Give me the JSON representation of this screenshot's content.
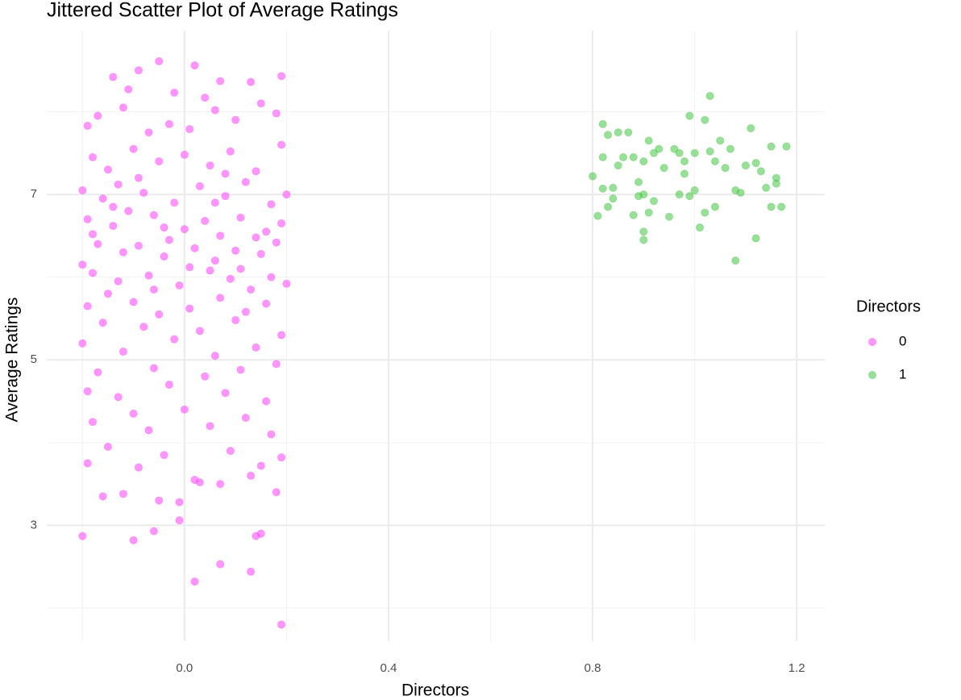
{
  "chart_data": {
    "type": "scatter",
    "title": "Jittered Scatter Plot of Average Ratings",
    "x_label": "Directors",
    "y_label": "Average Ratings",
    "legend_title": "Directors",
    "legend_position": "right",
    "grid": true,
    "xlim": [
      -0.27,
      1.255
    ],
    "ylim": [
      1.6,
      8.98
    ],
    "xticks": [
      {
        "value": 0,
        "label": "0.0"
      },
      0.4,
      0.8,
      1.2
    ],
    "yticks": [
      3,
      5,
      7
    ],
    "x_minor_ticks": [
      -0.2,
      0.2,
      0.6,
      1.0
    ],
    "y_minor_ticks": [
      2,
      4,
      6,
      8
    ],
    "series": [
      {
        "name": "0",
        "color": "#ff40ff",
        "x": [
          -0.2,
          -0.1,
          -0.06,
          -0.01,
          0.02,
          0.07,
          0.13,
          0.14,
          0.15,
          0.19,
          -0.05,
          0.02,
          0.19,
          -0.09,
          -0.14,
          0.07,
          0.13,
          -0.11,
          0.04,
          -0.02,
          -0.19,
          -0.17,
          -0.12,
          0.1,
          0.18,
          -0.03,
          0.06,
          0.15,
          -0.07,
          0.01,
          -0.18,
          -0.15,
          -0.1,
          -0.05,
          0.0,
          0.05,
          0.09,
          0.14,
          0.19,
          -0.13,
          -0.2,
          -0.16,
          -0.08,
          -0.02,
          0.03,
          0.08,
          0.12,
          0.17,
          0.2,
          -0.11,
          -0.19,
          -0.14,
          -0.06,
          0.0,
          0.04,
          0.11,
          0.16,
          0.19,
          -0.03,
          0.07,
          -0.17,
          -0.12,
          -0.09,
          -0.04,
          0.02,
          0.06,
          0.1,
          0.15,
          0.18,
          -0.2,
          -0.18,
          -0.13,
          -0.07,
          -0.01,
          0.05,
          0.09,
          0.13,
          0.17,
          0.2,
          -0.15,
          -0.19,
          -0.1,
          -0.05,
          0.01,
          0.07,
          0.12,
          0.16,
          -0.16,
          -0.08,
          0.03,
          0.1,
          0.19,
          -0.2,
          -0.12,
          -0.02,
          0.06,
          0.14,
          0.18,
          -0.17,
          -0.06,
          0.04,
          0.11,
          -0.19,
          -0.13,
          -0.03,
          0.08,
          0.16,
          -0.1,
          0.0,
          0.12,
          -0.18,
          -0.07,
          0.05,
          0.17,
          -0.15,
          -0.04,
          0.09,
          0.19,
          -0.19,
          -0.09,
          0.02,
          0.13,
          -0.16,
          -0.05,
          0.07,
          0.18,
          -0.12,
          0.03,
          0.15,
          -0.01,
          -0.14,
          -0.04,
          0.06,
          0.14,
          -0.18,
          0.08,
          -0.09,
          0.01,
          0.11,
          -0.06
        ],
        "values": [
          2.87,
          2.82,
          2.93,
          3.06,
          2.32,
          2.53,
          2.44,
          2.87,
          2.9,
          1.8,
          8.61,
          8.56,
          8.43,
          8.5,
          8.42,
          8.37,
          8.36,
          8.27,
          8.17,
          8.23,
          7.83,
          7.95,
          8.05,
          7.9,
          7.98,
          7.85,
          8.02,
          8.1,
          7.75,
          7.79,
          7.45,
          7.3,
          7.55,
          7.4,
          7.48,
          7.35,
          7.52,
          7.28,
          7.6,
          7.12,
          7.05,
          6.95,
          7.02,
          6.9,
          7.1,
          6.98,
          7.15,
          6.88,
          7.0,
          6.8,
          6.7,
          6.62,
          6.75,
          6.58,
          6.68,
          6.72,
          6.55,
          6.65,
          6.45,
          6.5,
          6.4,
          6.3,
          6.38,
          6.25,
          6.35,
          6.2,
          6.32,
          6.28,
          6.42,
          6.15,
          6.05,
          5.95,
          6.02,
          5.9,
          6.08,
          5.98,
          5.85,
          6.0,
          5.92,
          5.8,
          5.65,
          5.7,
          5.55,
          5.62,
          5.75,
          5.58,
          5.68,
          5.45,
          5.4,
          5.35,
          5.48,
          5.3,
          5.2,
          5.1,
          5.25,
          5.05,
          5.15,
          4.95,
          4.85,
          4.9,
          4.8,
          4.88,
          4.62,
          4.55,
          4.7,
          4.6,
          4.5,
          4.35,
          4.4,
          4.3,
          4.25,
          4.15,
          4.2,
          4.1,
          3.95,
          3.85,
          3.9,
          3.82,
          3.75,
          3.7,
          3.55,
          3.6,
          3.35,
          3.3,
          3.5,
          3.4,
          3.38,
          3.52,
          3.72,
          3.28,
          6.85,
          6.6,
          6.9,
          6.48,
          6.52,
          7.25,
          7.2,
          6.12,
          6.1,
          5.85
        ]
      },
      {
        "name": "1",
        "color": "#44c744",
        "x": [
          0.8,
          0.81,
          0.82,
          0.82,
          0.82,
          0.83,
          0.83,
          0.84,
          0.84,
          0.85,
          0.85,
          0.86,
          0.87,
          0.88,
          0.88,
          0.89,
          0.89,
          0.9,
          0.9,
          0.9,
          0.9,
          0.91,
          0.91,
          0.92,
          0.92,
          0.93,
          0.94,
          0.95,
          0.96,
          0.97,
          0.97,
          0.98,
          0.98,
          0.99,
          0.99,
          1.0,
          1.0,
          1.01,
          1.02,
          1.02,
          1.03,
          1.03,
          1.04,
          1.04,
          1.05,
          1.06,
          1.07,
          1.08,
          1.08,
          1.09,
          1.1,
          1.11,
          1.12,
          1.12,
          1.13,
          1.14,
          1.15,
          1.15,
          1.16,
          1.17,
          1.18,
          1.16
        ],
        "values": [
          7.22,
          6.74,
          7.07,
          7.45,
          7.85,
          7.72,
          6.85,
          7.08,
          6.95,
          7.35,
          7.75,
          7.45,
          7.75,
          6.75,
          7.45,
          7.15,
          6.98,
          7.0,
          7.4,
          6.45,
          6.55,
          7.65,
          6.78,
          7.5,
          6.92,
          7.55,
          7.32,
          6.73,
          7.55,
          7.0,
          7.5,
          7.4,
          7.25,
          7.95,
          6.98,
          7.5,
          7.05,
          6.6,
          6.78,
          7.9,
          7.52,
          8.19,
          7.4,
          6.85,
          7.65,
          7.32,
          7.55,
          7.05,
          6.2,
          7.02,
          7.35,
          7.8,
          6.47,
          7.38,
          7.28,
          7.08,
          7.58,
          6.85,
          7.13,
          6.85,
          7.58,
          7.2
        ]
      }
    ]
  }
}
